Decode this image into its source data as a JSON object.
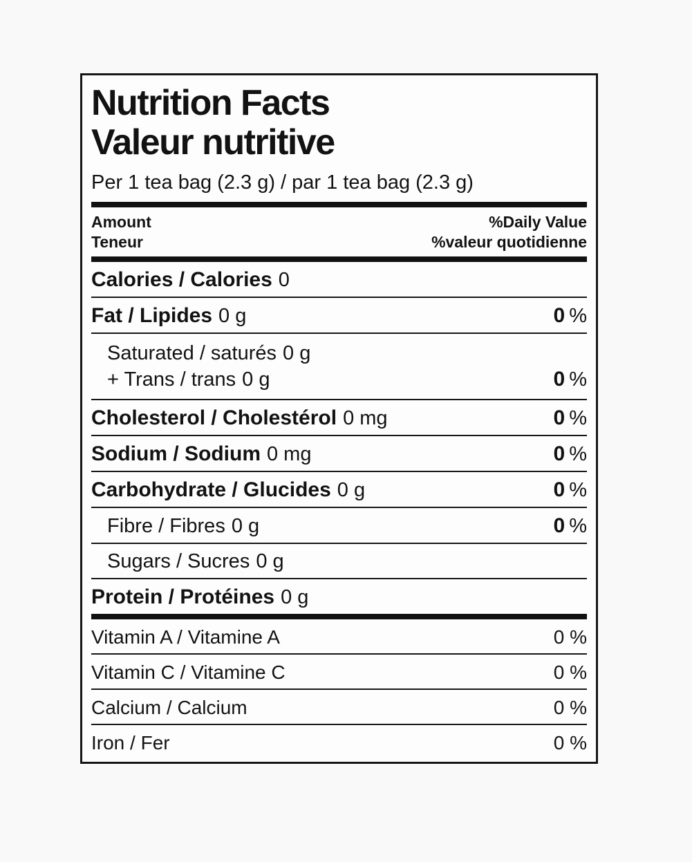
{
  "colors": {
    "ink": "#111111",
    "paper": "#fdfdfd",
    "page_background": "#faf9f9"
  },
  "label": {
    "title_en": "Nutrition Facts",
    "title_fr": "Valeur nutritive",
    "serving": "Per 1 tea bag (2.3 g) / par 1 tea bag (2.3 g)",
    "header": {
      "amount_en": "Amount",
      "amount_fr": "Teneur",
      "dv_en": "%Daily Value",
      "dv_fr": "%valeur quotidienne"
    },
    "rows": [
      {
        "label": "Calories / Calories",
        "amount": "0"
      },
      {
        "label": "Fat / Lipides",
        "amount": "0 g",
        "dv_num": "0",
        "dv_sym": "%"
      },
      {
        "label": "Saturated / saturés",
        "amount": "0 g",
        "label2": "+ Trans / trans",
        "amount2": "0 g",
        "dv_num": "0",
        "dv_sym": "%"
      },
      {
        "label": "Cholesterol / Cholestérol",
        "amount": "0 mg",
        "dv_num": "0",
        "dv_sym": "%"
      },
      {
        "label": "Sodium / Sodium",
        "amount": "0 mg",
        "dv_num": "0",
        "dv_sym": "%"
      },
      {
        "label": "Carbohydrate / Glucides",
        "amount": "0 g",
        "dv_num": "0",
        "dv_sym": "%"
      },
      {
        "label": "Fibre / Fibres",
        "amount": "0 g",
        "dv_num": "0",
        "dv_sym": "%"
      },
      {
        "label": "Sugars / Sucres",
        "amount": "0 g"
      },
      {
        "label": "Protein / Protéines",
        "amount": "0 g"
      },
      {
        "label": "Vitamin A / Vitamine A",
        "dv": "0 %"
      },
      {
        "label": "Vitamin C / Vitamine C",
        "dv": "0 %"
      },
      {
        "label": "Calcium / Calcium",
        "dv": "0 %"
      },
      {
        "label": "Iron / Fer",
        "dv": "0 %"
      }
    ]
  }
}
